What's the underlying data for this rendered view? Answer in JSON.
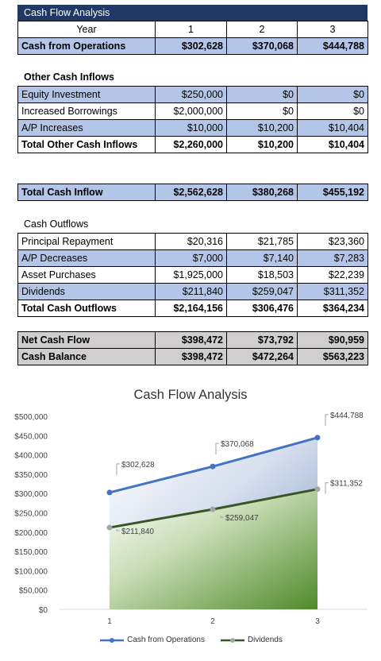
{
  "title": "Cash Flow Analysis",
  "header_row": {
    "label": "Year",
    "years": [
      "1",
      "2",
      "3"
    ]
  },
  "cash_from_operations": {
    "label": "Cash from Operations",
    "values": [
      "$302,628",
      "$370,068",
      "$444,788"
    ]
  },
  "other_cash_inflows": {
    "heading": "Other Cash Inflows",
    "rows": [
      {
        "label": "Equity Investment",
        "values": [
          "$250,000",
          "$0",
          "$0"
        ]
      },
      {
        "label": "Increased Borrowings",
        "values": [
          "$2,000,000",
          "$0",
          "$0"
        ]
      },
      {
        "label": "A/P Increases",
        "values": [
          "$10,000",
          "$10,200",
          "$10,404"
        ]
      }
    ],
    "total": {
      "label": "Total Other Cash Inflows",
      "values": [
        "$2,260,000",
        "$10,200",
        "$10,404"
      ]
    }
  },
  "total_cash_inflow": {
    "label": "Total Cash Inflow",
    "values": [
      "$2,562,628",
      "$380,268",
      "$455,192"
    ]
  },
  "cash_outflows": {
    "heading": "Cash Outflows",
    "rows": [
      {
        "label": "Principal Repayment",
        "values": [
          "$20,316",
          "$21,785",
          "$23,360"
        ]
      },
      {
        "label": "A/P Decreases",
        "values": [
          "$7,000",
          "$7,140",
          "$7,283"
        ]
      },
      {
        "label": "Asset Purchases",
        "values": [
          "$1,925,000",
          "$18,503",
          "$22,239"
        ]
      },
      {
        "label": "Dividends",
        "values": [
          "$211,840",
          "$259,047",
          "$311,352"
        ]
      }
    ],
    "total": {
      "label": "Total Cash Outflows",
      "values": [
        "$2,164,156",
        "$306,476",
        "$364,234"
      ]
    }
  },
  "net_cash_flow": {
    "label": "Net Cash Flow",
    "values": [
      "$398,472",
      "$73,792",
      "$90,959"
    ]
  },
  "cash_balance": {
    "label": "Cash Balance",
    "values": [
      "$398,472",
      "$472,264",
      "$563,223"
    ]
  },
  "chart_data": {
    "type": "area",
    "title": "Cash Flow Analysis",
    "categories": [
      "1",
      "2",
      "3"
    ],
    "y_ticks": [
      "$0",
      "$50,000",
      "$100,000",
      "$150,000",
      "$200,000",
      "$250,000",
      "$300,000",
      "$350,000",
      "$400,000",
      "$450,000",
      "$500,000"
    ],
    "ylim": [
      0,
      500000
    ],
    "legend_position": "bottom",
    "series": [
      {
        "name": "Cash from Operations",
        "values": [
          302628,
          370068,
          444788
        ],
        "labels": [
          "$302,628",
          "$370,068",
          "$444,788"
        ],
        "color": "#4472c4"
      },
      {
        "name": "Dividends",
        "values": [
          211840,
          259047,
          311352
        ],
        "labels": [
          "$211,840",
          "$259,047",
          "$311,352"
        ],
        "color": "#375623"
      }
    ]
  }
}
